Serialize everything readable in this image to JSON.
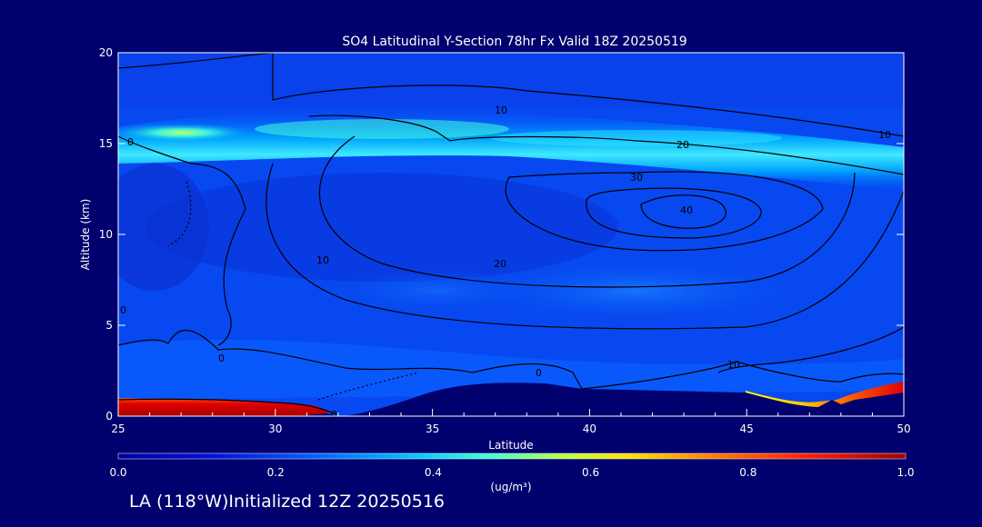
{
  "chart_data": {
    "type": "heatmap",
    "title": "SO4 Latitudinal Y-Section 78hr  Fx Valid 18Z 20250519",
    "xlabel": "Latitude",
    "ylabel": "Altitude (km)",
    "xlim": [
      25,
      50
    ],
    "ylim": [
      0,
      20
    ],
    "x_ticks": [
      25,
      30,
      35,
      40,
      45,
      50
    ],
    "y_ticks": [
      0,
      5,
      10,
      15,
      20
    ],
    "colorbar": {
      "label": "(ug/m³)",
      "min": 0.0,
      "max": 1.0,
      "ticks": [
        "0.0",
        "0.2",
        "0.4",
        "0.6",
        "0.8",
        "1.0"
      ]
    },
    "contour_labels": [
      "10",
      "10",
      "20",
      "30",
      "40",
      "10",
      "20",
      "0",
      "0",
      "0",
      "0",
      "0",
      "10"
    ],
    "field_description_values": {
      "upper_band_altitude_km": 15,
      "upper_band_peak_latitude": 27.5,
      "surface_high_latitudes": [
        25,
        31.5
      ],
      "surface_high_north": [
        46,
        50
      ],
      "contour_max_center": [
        43.3,
        11.3
      ]
    }
  },
  "footer": {
    "label": "LA (118°W)Initialized 12Z 20250516"
  }
}
